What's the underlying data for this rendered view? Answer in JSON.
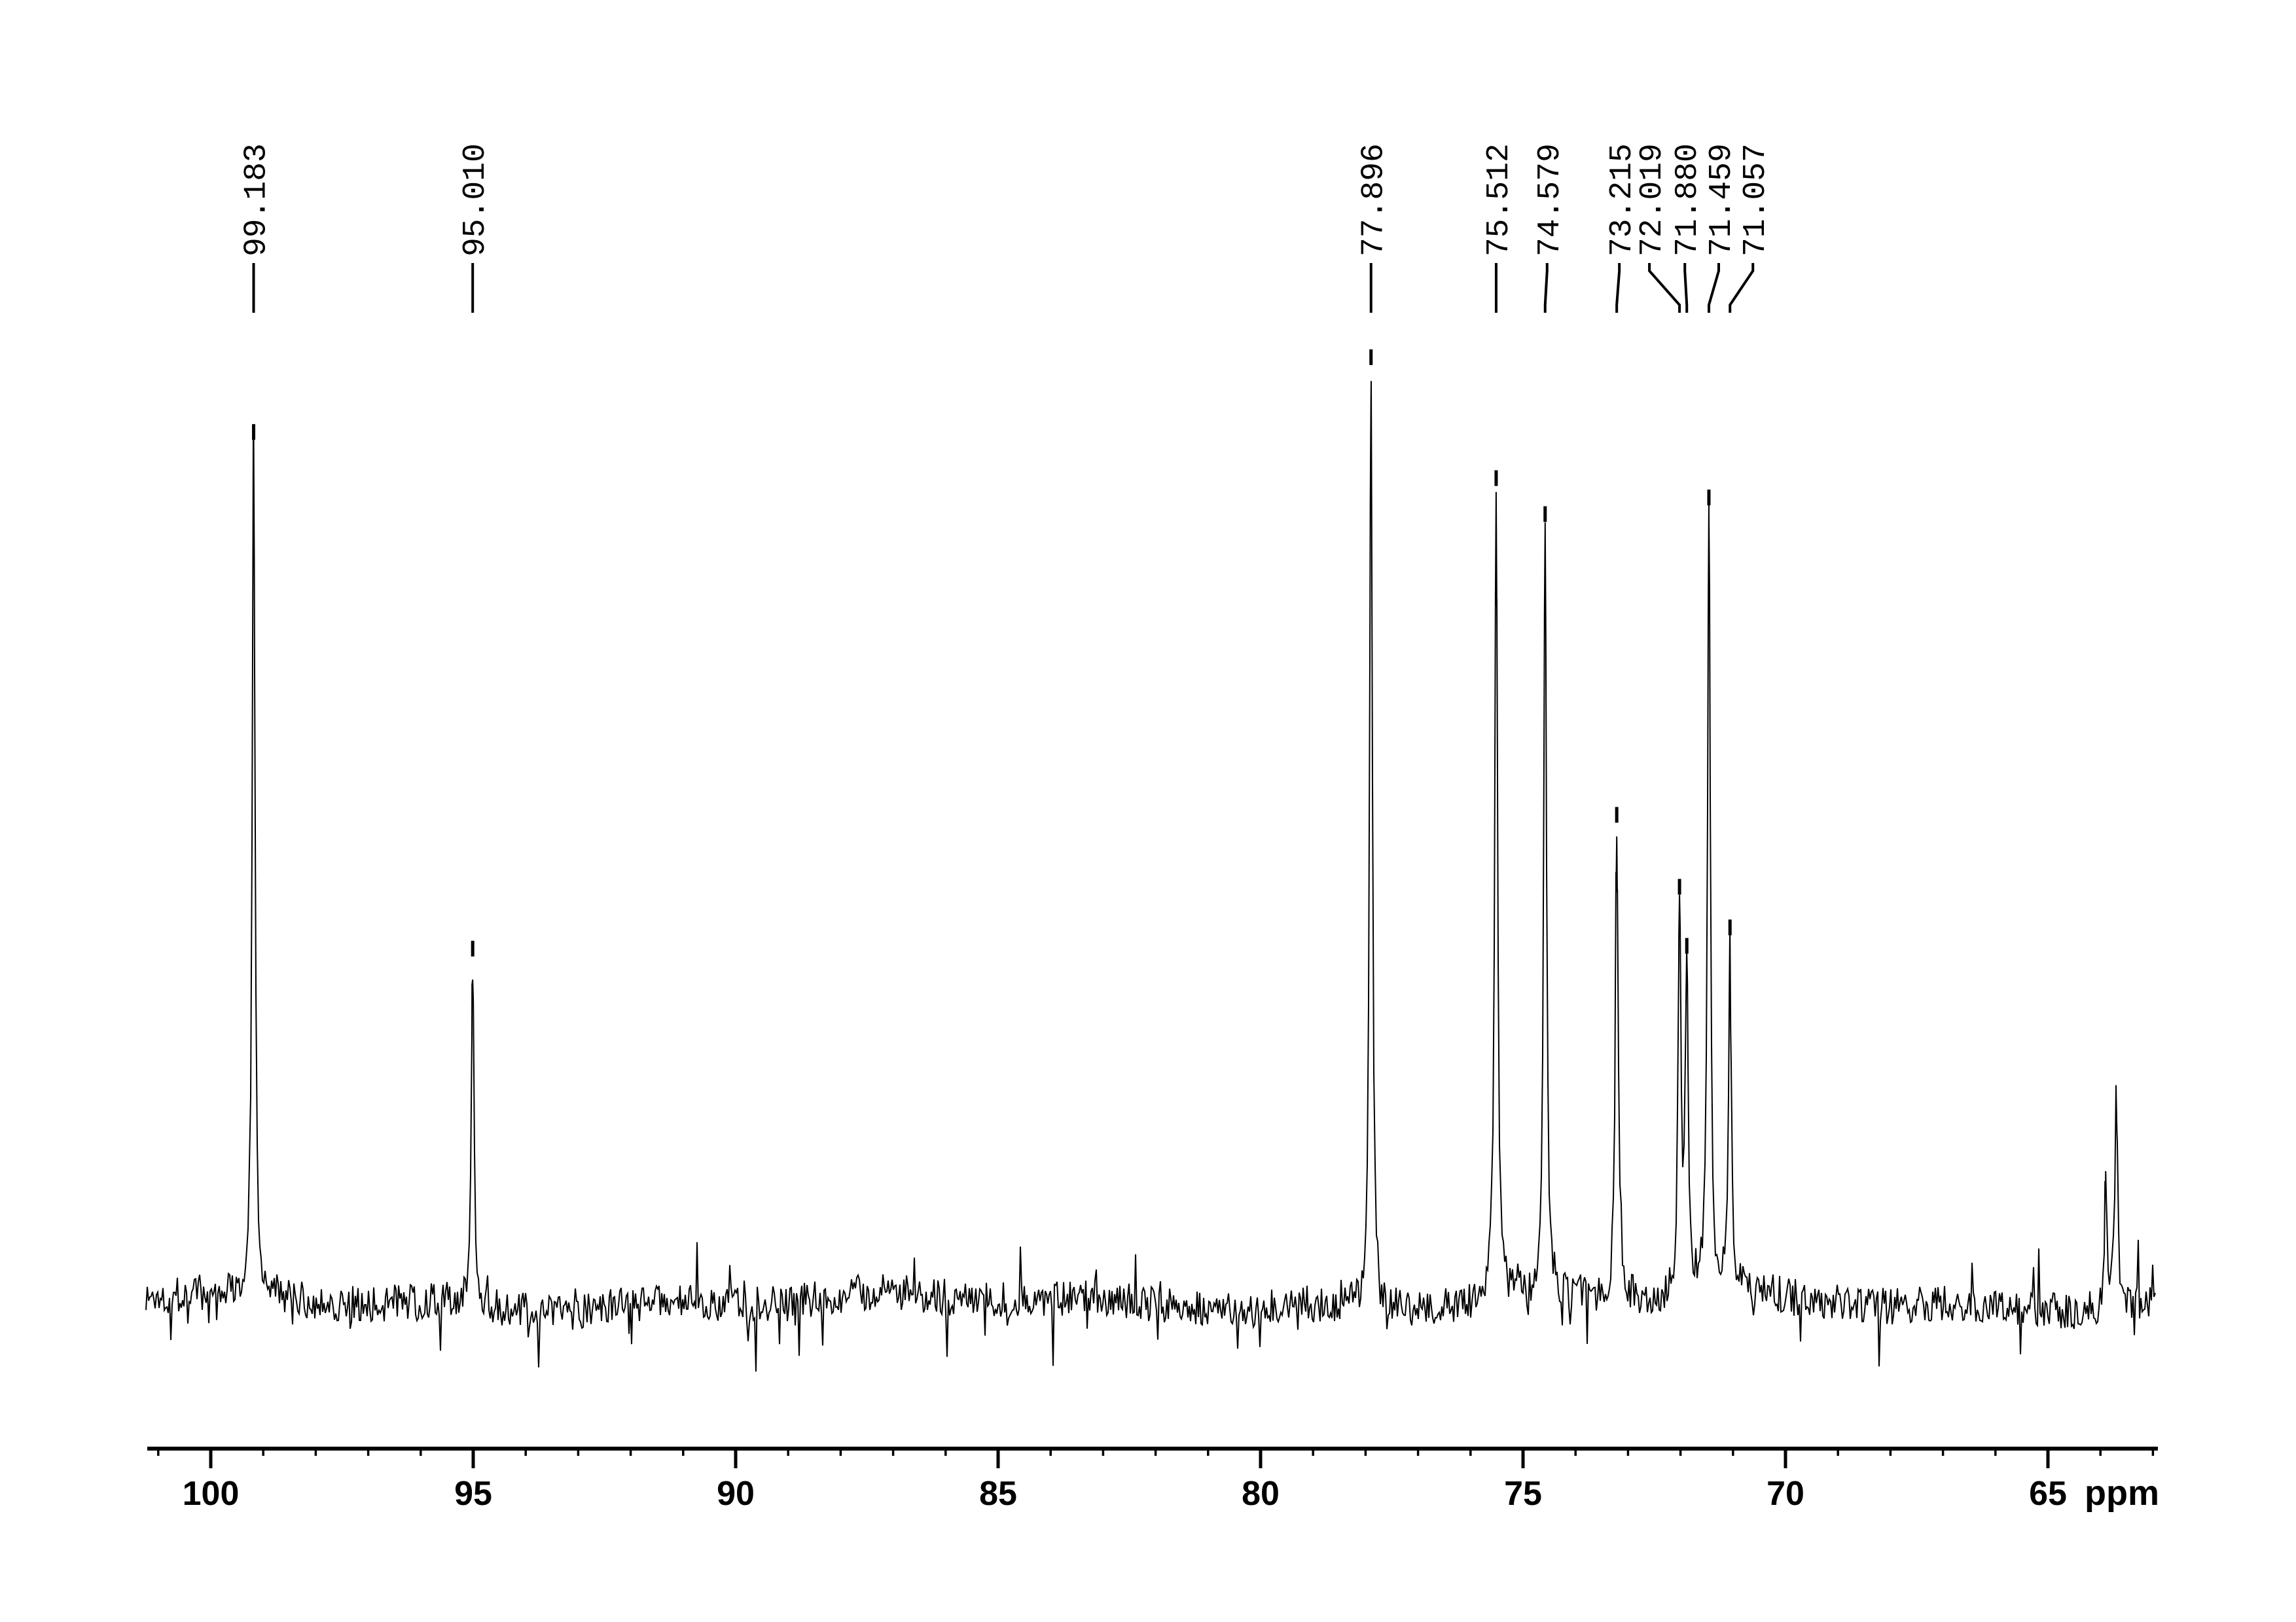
{
  "colors": {
    "foreground": "#000000",
    "background": "#ffffff"
  },
  "chart_data": {
    "type": "line",
    "description": "13C NMR spectrum trace with picked peaks",
    "xlabel": "ppm",
    "ylabel": "",
    "x_axis": {
      "unit_label": "ppm",
      "range_left_ppm": 101.2,
      "range_right_ppm": 62.9,
      "major_ticks": [
        100,
        95,
        90,
        85,
        80,
        75,
        70,
        65
      ],
      "major_tick_labels": [
        "100",
        "95",
        "90",
        "85",
        "80",
        "75",
        "70",
        "65"
      ],
      "minor_tick_step_ppm": 1
    },
    "y_axis": {
      "visible": false
    },
    "legend": "none",
    "grid": false,
    "peaks": [
      {
        "ppm": 99.183,
        "label": "99.183",
        "intensity": 0.919
      },
      {
        "ppm": 95.01,
        "label": "95.010",
        "intensity": 0.359
      },
      {
        "ppm": 77.896,
        "label": "77.896",
        "intensity": 1.0
      },
      {
        "ppm": 75.512,
        "label": "75.512",
        "intensity": 0.869
      },
      {
        "ppm": 74.579,
        "label": "74.579",
        "intensity": 0.83
      },
      {
        "ppm": 73.215,
        "label": "73.215",
        "intensity": 0.504
      },
      {
        "ppm": 72.019,
        "label": "72.019",
        "intensity": 0.426
      },
      {
        "ppm": 71.88,
        "label": "71.880",
        "intensity": 0.362
      },
      {
        "ppm": 71.459,
        "label": "71.459",
        "intensity": 0.848
      },
      {
        "ppm": 71.057,
        "label": "71.057",
        "intensity": 0.382
      },
      {
        "ppm": 63.9,
        "label": "",
        "intensity": 0.133
      },
      {
        "ppm": 63.7,
        "label": "",
        "intensity": 0.233
      }
    ],
    "noise": {
      "seed": 1337,
      "baseline_relative_intensity": 0.0,
      "typical_amplitude_relative": 0.02,
      "spike_amplitude_relative": 0.055
    }
  }
}
